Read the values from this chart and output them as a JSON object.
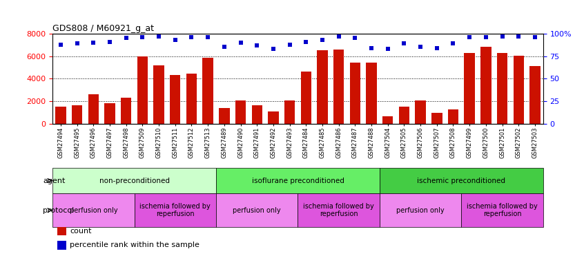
{
  "title": "GDS808 / M60921_g_at",
  "samples": [
    "GSM27494",
    "GSM27495",
    "GSM27496",
    "GSM27497",
    "GSM27498",
    "GSM27509",
    "GSM27510",
    "GSM27511",
    "GSM27512",
    "GSM27513",
    "GSM27489",
    "GSM27490",
    "GSM27491",
    "GSM27492",
    "GSM27493",
    "GSM27484",
    "GSM27485",
    "GSM27486",
    "GSM27487",
    "GSM27488",
    "GSM27504",
    "GSM27505",
    "GSM27506",
    "GSM27507",
    "GSM27508",
    "GSM27499",
    "GSM27500",
    "GSM27501",
    "GSM27502",
    "GSM27503"
  ],
  "counts": [
    1550,
    1650,
    2650,
    1850,
    2300,
    6000,
    5200,
    4300,
    4450,
    5850,
    1400,
    2050,
    1650,
    1100,
    2050,
    4650,
    6500,
    6600,
    5400,
    5450,
    700,
    1550,
    2050,
    1000,
    1300,
    6300,
    6850,
    6300,
    6050,
    5150
  ],
  "percentile_ranks": [
    88,
    89,
    90,
    91,
    95,
    96,
    97,
    93,
    96,
    96,
    85,
    90,
    87,
    83,
    88,
    91,
    93,
    97,
    95,
    84,
    83,
    89,
    85,
    84,
    89,
    96,
    96,
    97,
    97,
    96
  ],
  "bar_color": "#cc1100",
  "dot_color": "#0000cc",
  "ylim_left": [
    0,
    8000
  ],
  "ylim_right": [
    0,
    100
  ],
  "yticks_left": [
    0,
    2000,
    4000,
    6000,
    8000
  ],
  "yticks_right": [
    0,
    25,
    50,
    75,
    100
  ],
  "ytick_right_labels": [
    "0",
    "25",
    "50",
    "75",
    "100%"
  ],
  "agent_groups": [
    {
      "label": "non-preconditioned",
      "start": 0,
      "end": 9,
      "color": "#ccffcc"
    },
    {
      "label": "isoflurane preconditioned",
      "start": 10,
      "end": 19,
      "color": "#66ee66"
    },
    {
      "label": "ischemic preconditioned",
      "start": 20,
      "end": 29,
      "color": "#44cc44"
    }
  ],
  "protocol_groups": [
    {
      "label": "perfusion only",
      "start": 0,
      "end": 4,
      "color": "#ee88ee"
    },
    {
      "label": "ischemia followed by\nreperfusion",
      "start": 5,
      "end": 9,
      "color": "#dd55dd"
    },
    {
      "label": "perfusion only",
      "start": 10,
      "end": 14,
      "color": "#ee88ee"
    },
    {
      "label": "ischemia followed by\nreperfusion",
      "start": 15,
      "end": 19,
      "color": "#dd55dd"
    },
    {
      "label": "perfusion only",
      "start": 20,
      "end": 24,
      "color": "#ee88ee"
    },
    {
      "label": "ischemia followed by\nreperfusion",
      "start": 25,
      "end": 29,
      "color": "#dd55dd"
    }
  ]
}
